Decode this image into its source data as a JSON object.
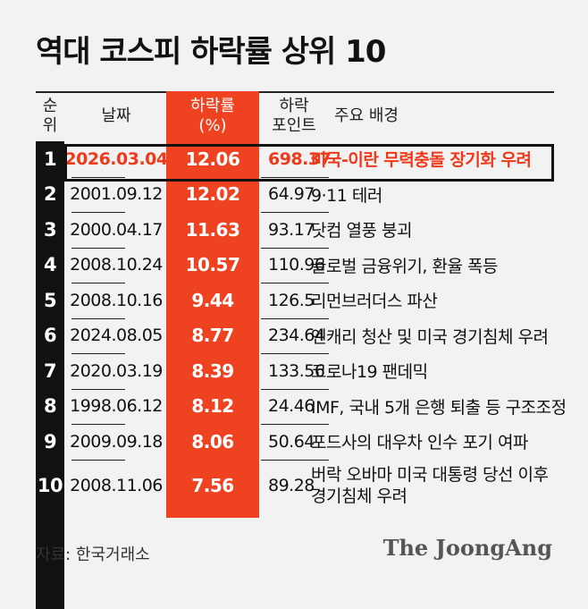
{
  "title": "역대 코스피 하락률 상위 10",
  "chart_data": {
    "type": "table",
    "headers": {
      "rank": [
        "순",
        "위"
      ],
      "date": [
        "날짜"
      ],
      "pct": [
        "하락률",
        "(%)"
      ],
      "points": [
        "하락",
        "포인트"
      ],
      "background": [
        "주요 배경"
      ]
    },
    "rows": [
      {
        "rank": "1",
        "date": "2026.03.04",
        "pct": "12.06",
        "points": "698.37",
        "background": [
          "미국-이란 무력충돌 장기화 우려"
        ]
      },
      {
        "rank": "2",
        "date": "2001.09.12",
        "pct": "12.02",
        "points": "64.97",
        "background": [
          "9·11 테러"
        ]
      },
      {
        "rank": "3",
        "date": "2000.04.17",
        "pct": "11.63",
        "points": "93.17",
        "background": [
          "닷컴 열풍 붕괴"
        ]
      },
      {
        "rank": "4",
        "date": "2008.10.24",
        "pct": "10.57",
        "points": "110.96",
        "background": [
          "글로벌 금융위기, 환율 폭등"
        ]
      },
      {
        "rank": "5",
        "date": "2008.10.16",
        "pct": "9.44",
        "points": "126.5",
        "background": [
          "리먼브러더스 파산"
        ]
      },
      {
        "rank": "6",
        "date": "2024.08.05",
        "pct": "8.77",
        "points": "234.64",
        "background": [
          "엔캐리 청산 및 미국 경기침체 우려"
        ]
      },
      {
        "rank": "7",
        "date": "2020.03.19",
        "pct": "8.39",
        "points": "133.56",
        "background": [
          "코로나19 팬데믹"
        ]
      },
      {
        "rank": "8",
        "date": "1998.06.12",
        "pct": "8.12",
        "points": "24.46",
        "background": [
          "IMF, 국내 5개 은행 퇴출 등 구조조정"
        ]
      },
      {
        "rank": "9",
        "date": "2009.09.18",
        "pct": "8.06",
        "points": "50.64",
        "background": [
          "포드사의 대우차 인수 포기 여파"
        ]
      },
      {
        "rank": "10",
        "date": "2008.11.06",
        "pct": "7.56",
        "points": "89.28",
        "background": [
          "버락 오바마 미국 대통령 당선 이후",
          "경기침체 우려"
        ]
      }
    ],
    "colors": {
      "accent": "#ee4221",
      "rank_bg": "#111111"
    }
  },
  "source": "자료: 한국거래소",
  "logo": "The JoongAng"
}
